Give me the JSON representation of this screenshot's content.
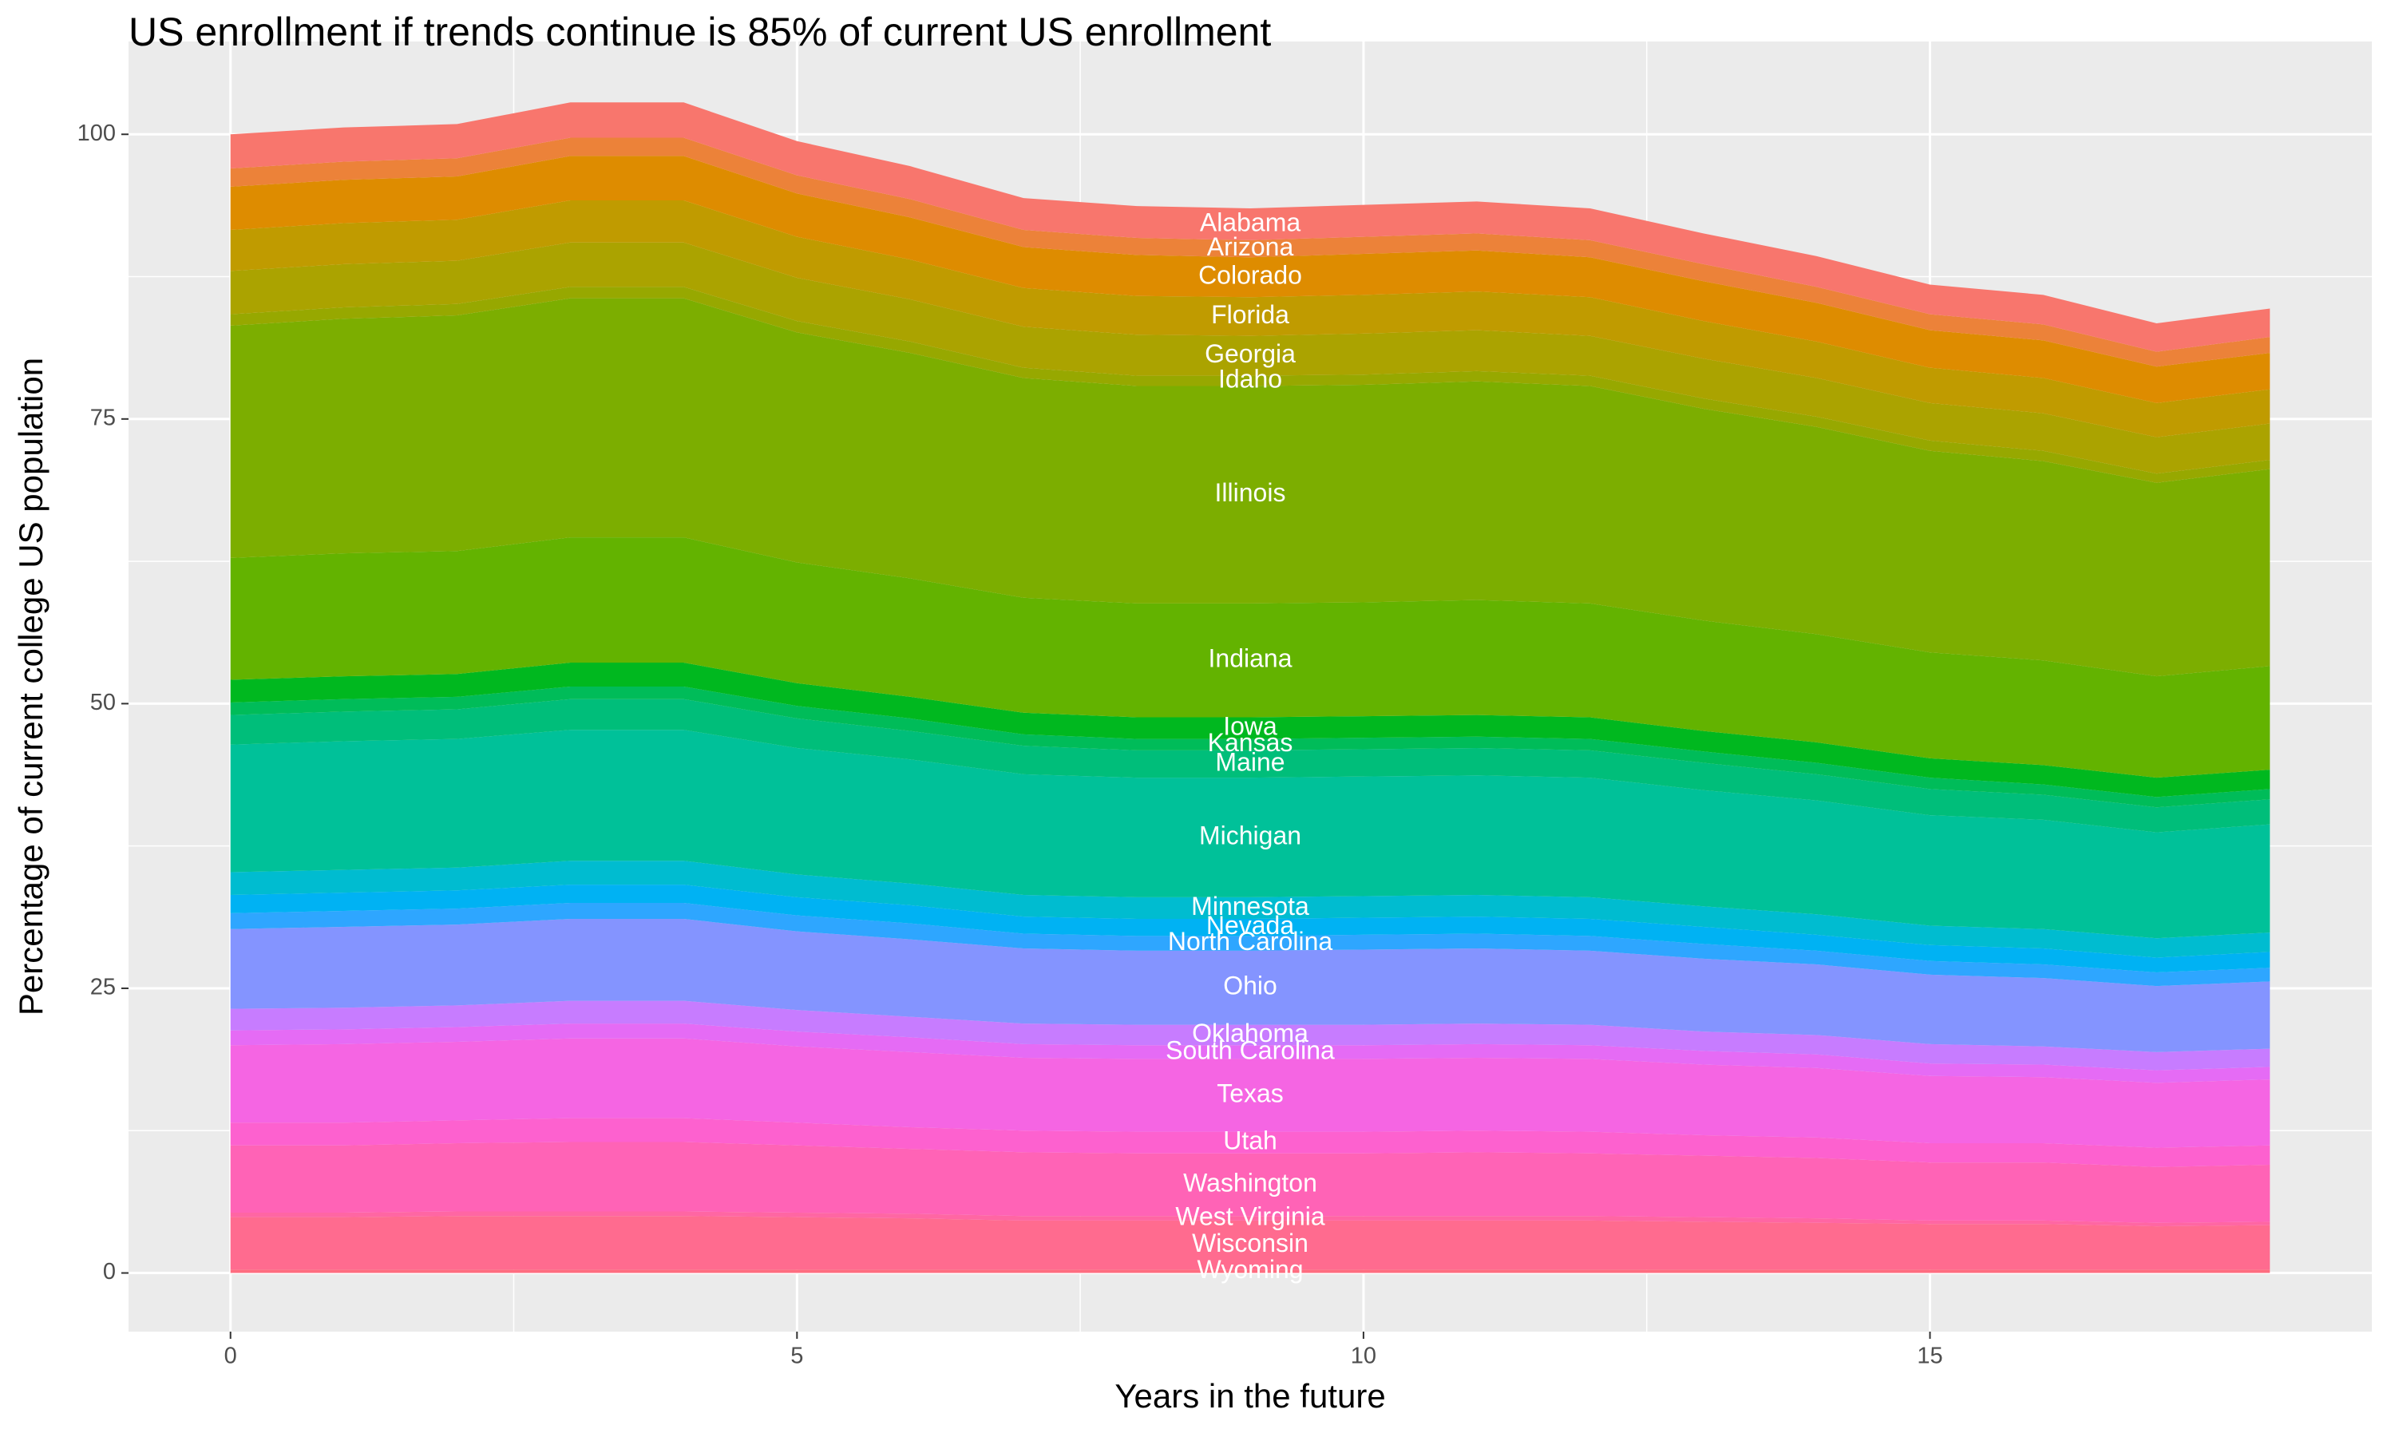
{
  "chart_data": {
    "type": "stacked-area",
    "title": "US enrollment if trends continue is 85% of current US enrollment",
    "x_label": "Years in the future",
    "y_label": "Percentage of current college US population",
    "x": [
      0,
      1,
      2,
      3,
      4,
      5,
      6,
      7,
      8,
      9,
      10,
      11,
      12,
      13,
      14,
      15,
      16,
      17,
      18
    ],
    "xlim": [
      -0.9,
      18.9
    ],
    "xticks": [
      0,
      5,
      10,
      15
    ],
    "ylim": [
      -5.15,
      108.15
    ],
    "yticks": [
      0,
      25,
      50,
      75,
      100
    ],
    "grid": true,
    "series": [
      {
        "name": "Alabama",
        "color": "#f8766d",
        "values": [
          3.0,
          3.0,
          3.0,
          3.1,
          3.1,
          3.0,
          2.9,
          2.8,
          2.8,
          2.8,
          2.8,
          2.8,
          2.8,
          2.7,
          2.7,
          2.6,
          2.6,
          2.5,
          2.5
        ]
      },
      {
        "name": "Arizona",
        "color": "#ec8239",
        "values": [
          1.6,
          1.6,
          1.6,
          1.6,
          1.6,
          1.6,
          1.6,
          1.5,
          1.5,
          1.5,
          1.5,
          1.5,
          1.5,
          1.5,
          1.4,
          1.4,
          1.4,
          1.3,
          1.4
        ]
      },
      {
        "name": "Colorado",
        "color": "#de8c00",
        "values": [
          3.8,
          3.8,
          3.8,
          3.9,
          3.9,
          3.8,
          3.7,
          3.6,
          3.6,
          3.5,
          3.6,
          3.6,
          3.5,
          3.5,
          3.4,
          3.3,
          3.3,
          3.2,
          3.2
        ]
      },
      {
        "name": "Florida",
        "color": "#c09b00",
        "values": [
          3.6,
          3.6,
          3.6,
          3.7,
          3.7,
          3.6,
          3.5,
          3.4,
          3.4,
          3.4,
          3.4,
          3.4,
          3.4,
          3.3,
          3.2,
          3.1,
          3.1,
          3.0,
          3.0
        ]
      },
      {
        "name": "Georgia",
        "color": "#aba300",
        "values": [
          3.8,
          3.8,
          3.8,
          3.9,
          3.9,
          3.8,
          3.7,
          3.6,
          3.6,
          3.5,
          3.6,
          3.6,
          3.5,
          3.5,
          3.4,
          3.3,
          3.3,
          3.2,
          3.2
        ]
      },
      {
        "name": "Idaho",
        "color": "#97a800",
        "values": [
          1.0,
          1.0,
          1.0,
          1.0,
          1.0,
          1.0,
          1.0,
          0.9,
          0.9,
          0.9,
          0.9,
          0.9,
          0.9,
          0.9,
          0.9,
          0.9,
          0.9,
          0.8,
          0.8
        ]
      },
      {
        "name": "Illinois",
        "color": "#7cae00",
        "values": [
          20.4,
          20.6,
          20.7,
          21.0,
          21.0,
          20.2,
          19.8,
          19.3,
          19.1,
          19.1,
          19.1,
          19.2,
          19.1,
          18.6,
          18.2,
          17.7,
          17.5,
          17.0,
          17.3
        ]
      },
      {
        "name": "Indiana",
        "color": "#63b300",
        "values": [
          10.7,
          10.8,
          10.8,
          11.0,
          11.0,
          10.6,
          10.4,
          10.1,
          10.0,
          10.0,
          10.0,
          10.1,
          10.0,
          9.7,
          9.5,
          9.3,
          9.2,
          8.9,
          9.1
        ]
      },
      {
        "name": "Iowa",
        "color": "#00b81f",
        "values": [
          2.0,
          2.0,
          2.0,
          2.1,
          2.1,
          2.0,
          1.9,
          1.9,
          1.9,
          1.9,
          1.9,
          1.9,
          1.9,
          1.8,
          1.8,
          1.7,
          1.7,
          1.7,
          1.7
        ]
      },
      {
        "name": "Kansas",
        "color": "#00bc59",
        "values": [
          1.1,
          1.1,
          1.1,
          1.1,
          1.1,
          1.1,
          1.1,
          1.0,
          1.0,
          1.0,
          1.0,
          1.0,
          1.0,
          1.0,
          1.0,
          1.0,
          0.9,
          0.9,
          0.9
        ]
      },
      {
        "name": "Maine",
        "color": "#00be7a",
        "values": [
          2.6,
          2.6,
          2.6,
          2.7,
          2.7,
          2.6,
          2.5,
          2.5,
          2.4,
          2.4,
          2.4,
          2.4,
          2.4,
          2.4,
          2.3,
          2.3,
          2.2,
          2.2,
          2.2
        ]
      },
      {
        "name": "Michigan",
        "color": "#00c199",
        "values": [
          11.2,
          11.3,
          11.3,
          11.5,
          11.5,
          11.1,
          10.9,
          10.6,
          10.5,
          10.5,
          10.5,
          10.5,
          10.5,
          10.2,
          10.0,
          9.7,
          9.6,
          9.3,
          9.5
        ]
      },
      {
        "name": "Minnesota",
        "color": "#00bcd0",
        "values": [
          2.0,
          2.0,
          2.0,
          2.1,
          2.1,
          2.0,
          1.9,
          1.9,
          1.9,
          1.9,
          1.9,
          1.9,
          1.9,
          1.8,
          1.8,
          1.7,
          1.7,
          1.7,
          1.7
        ]
      },
      {
        "name": "Nevada",
        "color": "#00b2f3",
        "values": [
          1.6,
          1.6,
          1.6,
          1.6,
          1.6,
          1.6,
          1.6,
          1.5,
          1.5,
          1.5,
          1.5,
          1.5,
          1.5,
          1.5,
          1.4,
          1.4,
          1.4,
          1.3,
          1.4
        ]
      },
      {
        "name": "North Carolina",
        "color": "#2ea6ff",
        "values": [
          1.4,
          1.4,
          1.4,
          1.4,
          1.4,
          1.4,
          1.4,
          1.3,
          1.3,
          1.3,
          1.3,
          1.3,
          1.3,
          1.3,
          1.2,
          1.2,
          1.2,
          1.2,
          1.2
        ]
      },
      {
        "name": "Ohio",
        "color": "#8494ff",
        "values": [
          7.0,
          7.1,
          7.1,
          7.2,
          7.2,
          6.9,
          6.8,
          6.6,
          6.5,
          6.5,
          6.6,
          6.6,
          6.5,
          6.4,
          6.2,
          6.1,
          6.0,
          5.8,
          5.9
        ]
      },
      {
        "name": "Oklahoma",
        "color": "#c77cff",
        "values": [
          1.9,
          1.9,
          1.9,
          2.0,
          2.0,
          1.9,
          1.8,
          1.8,
          1.8,
          1.8,
          1.8,
          1.8,
          1.8,
          1.7,
          1.7,
          1.7,
          1.6,
          1.6,
          1.6
        ]
      },
      {
        "name": "South Carolina",
        "color": "#e56bf5",
        "values": [
          1.3,
          1.3,
          1.3,
          1.3,
          1.3,
          1.3,
          1.3,
          1.2,
          1.2,
          1.2,
          1.2,
          1.2,
          1.2,
          1.2,
          1.2,
          1.1,
          1.1,
          1.1,
          1.1
        ]
      },
      {
        "name": "Texas",
        "color": "#f565e3",
        "values": [
          6.8,
          6.9,
          6.9,
          7.0,
          7.0,
          6.7,
          6.6,
          6.4,
          6.4,
          6.4,
          6.4,
          6.4,
          6.4,
          6.2,
          6.1,
          5.9,
          5.8,
          5.7,
          5.8
        ]
      },
      {
        "name": "Utah",
        "color": "#fd61cf",
        "values": [
          2.0,
          2.0,
          2.0,
          2.1,
          2.1,
          2.0,
          1.9,
          1.9,
          1.9,
          1.9,
          1.9,
          1.9,
          1.9,
          1.8,
          1.8,
          1.7,
          1.7,
          1.7,
          1.7
        ]
      },
      {
        "name": "Washington",
        "color": "#ff63b6",
        "values": [
          5.9,
          5.9,
          6.0,
          6.1,
          6.1,
          5.9,
          5.7,
          5.6,
          5.5,
          5.5,
          5.5,
          5.6,
          5.5,
          5.4,
          5.3,
          5.1,
          5.1,
          4.9,
          5.0
        ]
      },
      {
        "name": "West Virginia",
        "color": "#ff66a3",
        "values": [
          0.4,
          0.4,
          0.4,
          0.4,
          0.4,
          0.4,
          0.4,
          0.4,
          0.4,
          0.4,
          0.4,
          0.4,
          0.4,
          0.4,
          0.4,
          0.3,
          0.3,
          0.3,
          0.3
        ]
      },
      {
        "name": "Wisconsin",
        "color": "#ff6b8f",
        "values": [
          4.6,
          4.6,
          4.7,
          4.7,
          4.7,
          4.6,
          4.5,
          4.3,
          4.3,
          4.3,
          4.3,
          4.3,
          4.3,
          4.2,
          4.1,
          4.0,
          4.0,
          3.8,
          3.9
        ]
      },
      {
        "name": "Wyoming",
        "color": "#ff6c80",
        "values": [
          0.3,
          0.3,
          0.3,
          0.3,
          0.3,
          0.3,
          0.3,
          0.3,
          0.3,
          0.3,
          0.3,
          0.3,
          0.3,
          0.3,
          0.3,
          0.3,
          0.3,
          0.3,
          0.3
        ]
      }
    ]
  }
}
